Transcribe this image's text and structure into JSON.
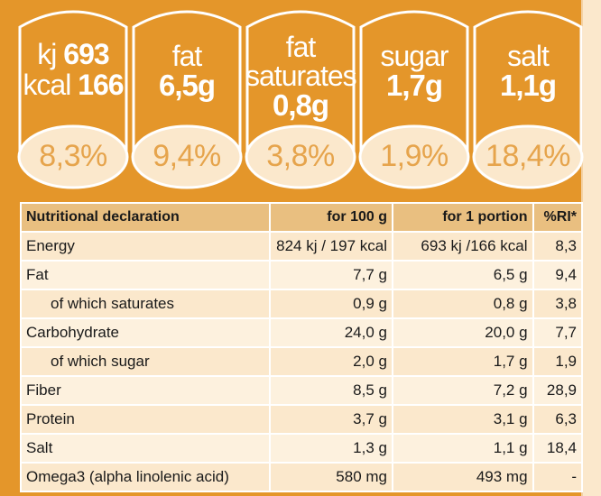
{
  "colors": {
    "badge_fill": "#e4962a",
    "oval_fill": "#fbe8cc",
    "percent_text": "#e6a44c"
  },
  "badges": [
    {
      "kj_label": "kj",
      "kj_value": "693",
      "kcal_label": "kcal",
      "kcal_value": "166",
      "percent": "8,3%"
    },
    {
      "label": "fat",
      "value": "6,5g",
      "percent": "9,4%"
    },
    {
      "label_line1": "fat",
      "label_line2": "saturates",
      "value": "0,8g",
      "percent": "3,8%"
    },
    {
      "label": "sugar",
      "value": "1,7g",
      "percent": "1,9%"
    },
    {
      "label": "salt",
      "value": "1,1g",
      "percent": "18,4%"
    }
  ],
  "table": {
    "headers": [
      "Nutritional declaration",
      "for 100 g",
      "for 1 portion",
      "%RI*"
    ],
    "rows": [
      [
        "Energy",
        "824 kj  / 197 kcal",
        "693 kj  /166 kcal",
        "8,3"
      ],
      [
        "Fat",
        "7,7 g",
        "6,5 g",
        "9,4"
      ],
      [
        "of which saturates",
        "0,9 g",
        "0,8 g",
        "3,8"
      ],
      [
        "Carbohydrate",
        "24,0 g",
        "20,0 g",
        "7,7"
      ],
      [
        "of which sugar",
        "2,0 g",
        "1,7 g",
        "1,9"
      ],
      [
        "Fiber",
        "8,5 g",
        "7,2 g",
        "28,9"
      ],
      [
        "Protein",
        "3,7 g",
        "3,1 g",
        "6,3"
      ],
      [
        "Salt",
        "1,3 g",
        "1,1 g",
        "18,4"
      ],
      [
        "Omega3 (alpha linolenic acid)",
        "580 mg",
        "493 mg",
        "-"
      ]
    ]
  }
}
